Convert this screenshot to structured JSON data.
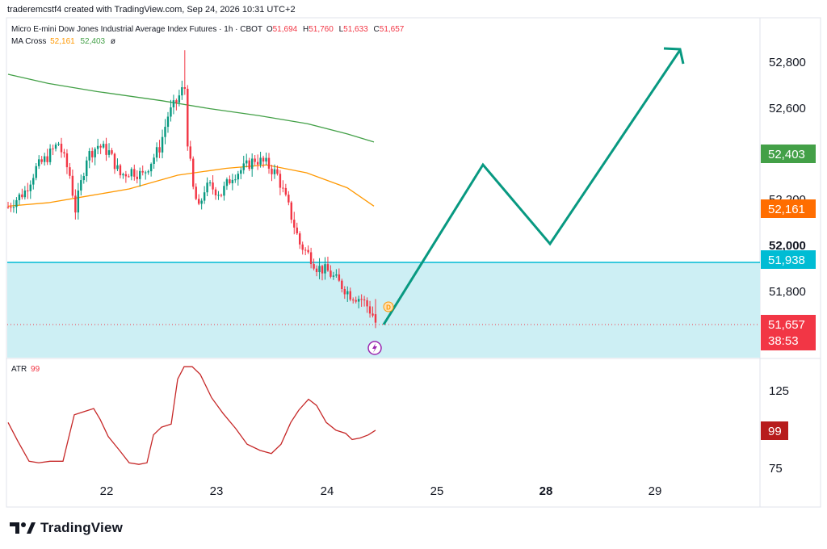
{
  "header": {
    "attribution": "traderemcstf4 created with TradingView.com, Sep 24, 2026 10:31 UTC+2"
  },
  "legend": {
    "symbol": "Micro E-mini Dow Jones Industrial Average Index Futures · 1h · CBOT",
    "o_label": "O",
    "o_value": "51,694",
    "h_label": "H",
    "h_value": "51,760",
    "l_label": "L",
    "l_value": "51,633",
    "c_label": "C",
    "c_value": "51,657",
    "ma_title": "MA Cross",
    "ma_fast": "52,161",
    "ma_slow": "52,403",
    "ma_icon": "ø",
    "atr_title": "ATR",
    "atr_value": "99"
  },
  "badges": {
    "ma_slow": "52,403",
    "ma_fast": "52,161",
    "level": "51,938",
    "last_price": "51,657",
    "countdown": "38:53",
    "atr": "99"
  },
  "branding": {
    "name": "TradingView"
  },
  "colors": {
    "up": "#089981",
    "down": "#f23645",
    "ma_fast": "#ff9800",
    "ma_slow": "#43a047",
    "zone_fill": "#cdeff4",
    "zone_line": "#00bcd4",
    "projection": "#089981",
    "atr_line": "#c62828",
    "atr_badge": "#b71c1c",
    "level_badge": "#00bcd4"
  },
  "chart_data": [
    {
      "type": "candlestick",
      "title": "Micro E-mini Dow Jones Industrial Average Index Futures",
      "timeframe": "1h",
      "y_ticks": [
        "51,800",
        "52,000",
        "52,200",
        "52,600",
        "52,800"
      ],
      "y_tick_values": [
        51800,
        52000,
        52200,
        52600,
        52800
      ],
      "x_ticks": [
        "22",
        "23",
        "24",
        "25",
        "28",
        "29"
      ],
      "x_tick_days": [
        22,
        23,
        24,
        25,
        28,
        29
      ],
      "last_candle": {
        "open": 51694,
        "high": 51760,
        "low": 51633,
        "close": 51657
      },
      "candles": [
        [
          51690,
          51740,
          51870,
          51660
        ],
        [
          51690,
          51830,
          51860,
          51650
        ],
        [
          51690,
          51800,
          51840,
          51660
        ],
        [
          51700,
          51790,
          51810,
          51730
        ],
        [
          51710,
          51770,
          51800,
          51740
        ],
        [
          51720,
          51760,
          51790,
          51700
        ],
        [
          51690,
          51700,
          51720,
          51640
        ],
        [
          51700,
          51700,
          51700,
          51700
        ],
        [
          51700,
          51675,
          51760,
          51630
        ],
        [
          51675,
          51694,
          51760,
          51633
        ],
        [
          51694,
          51657,
          51760,
          51633
        ]
      ],
      "candle_series_note": "",
      "ma_fast": {
        "name": "MA Cross",
        "last": 52161
      },
      "ma_slow": {
        "name": "MA Cross",
        "last": 52403
      },
      "zone": {
        "top": 51938
      },
      "projection": [
        51657,
        52342,
        52004,
        52835
      ]
    },
    {
      "type": "line",
      "title": "ATR",
      "y_ticks": [
        "75",
        "125"
      ],
      "y_tick_values": [
        75,
        125
      ],
      "last": 99
    }
  ]
}
